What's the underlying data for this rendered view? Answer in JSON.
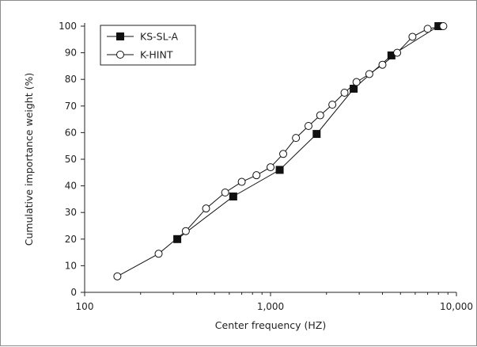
{
  "chart_data": {
    "type": "line",
    "xlabel": "Center frequency (HZ)",
    "ylabel": "Cumulative importance weight (%)",
    "xscale": "log",
    "xlim": [
      100,
      10000
    ],
    "ylim": [
      0,
      100
    ],
    "x_ticks": [
      100,
      1000,
      10000
    ],
    "x_tick_labels": [
      "100",
      "1,000",
      "10,000"
    ],
    "y_ticks": [
      0,
      10,
      20,
      30,
      40,
      50,
      60,
      70,
      80,
      90,
      100
    ],
    "grid": false,
    "legend_position": "top-left",
    "series": [
      {
        "name": "KS-SL-A",
        "marker": "filled-square",
        "color": "#111111",
        "points": [
          {
            "x": 315,
            "y": 20
          },
          {
            "x": 630,
            "y": 36
          },
          {
            "x": 1120,
            "y": 46
          },
          {
            "x": 1770,
            "y": 59.5
          },
          {
            "x": 2800,
            "y": 76.5
          },
          {
            "x": 4470,
            "y": 89
          },
          {
            "x": 8000,
            "y": 100
          }
        ]
      },
      {
        "name": "K-HINT",
        "marker": "open-circle",
        "color": "#111111",
        "points": [
          {
            "x": 150,
            "y": 6
          },
          {
            "x": 250,
            "y": 14.5
          },
          {
            "x": 350,
            "y": 23
          },
          {
            "x": 450,
            "y": 31.5
          },
          {
            "x": 570,
            "y": 37.5
          },
          {
            "x": 700,
            "y": 41.5
          },
          {
            "x": 840,
            "y": 44
          },
          {
            "x": 1000,
            "y": 47
          },
          {
            "x": 1170,
            "y": 52
          },
          {
            "x": 1370,
            "y": 58
          },
          {
            "x": 1600,
            "y": 62.5
          },
          {
            "x": 1850,
            "y": 66.5
          },
          {
            "x": 2150,
            "y": 70.5
          },
          {
            "x": 2500,
            "y": 75
          },
          {
            "x": 2900,
            "y": 79
          },
          {
            "x": 3400,
            "y": 82
          },
          {
            "x": 4000,
            "y": 85.5
          },
          {
            "x": 4800,
            "y": 90
          },
          {
            "x": 5800,
            "y": 96
          },
          {
            "x": 7000,
            "y": 99
          },
          {
            "x": 8500,
            "y": 100
          }
        ]
      }
    ]
  }
}
